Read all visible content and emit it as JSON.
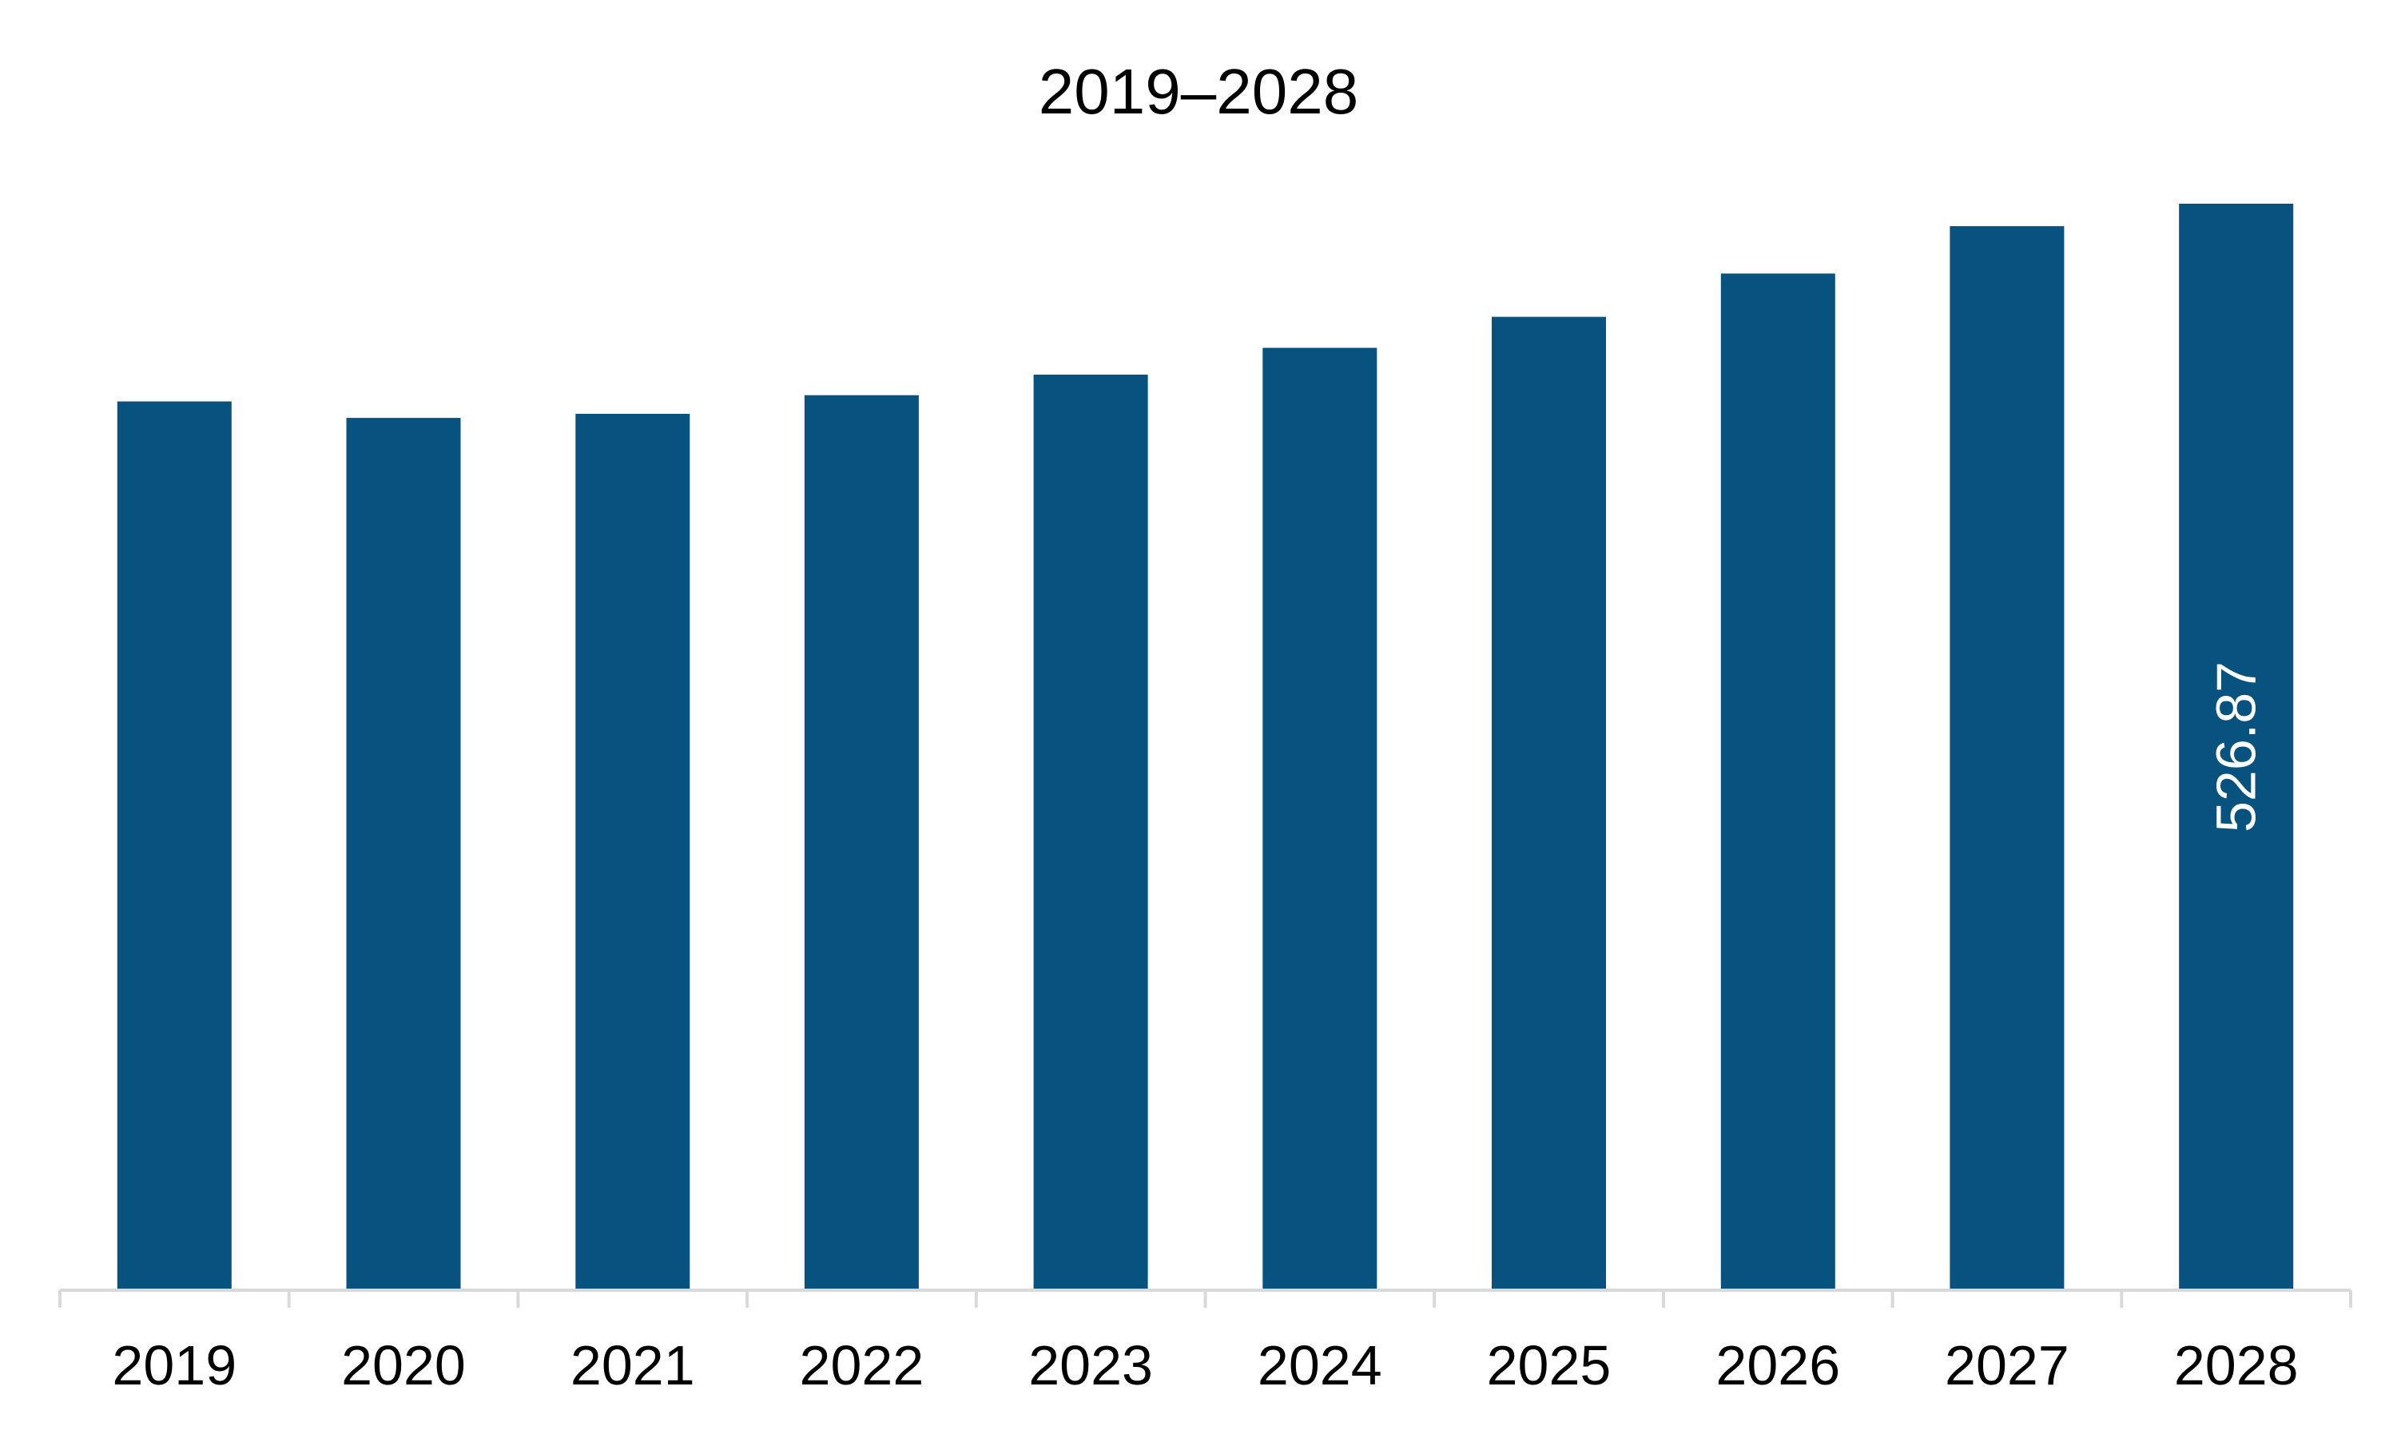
{
  "chart_data": {
    "type": "bar",
    "title": "2019–2028",
    "xlabel": "",
    "ylabel": "",
    "categories": [
      "2019",
      "2020",
      "2021",
      "2022",
      "2023",
      "2024",
      "2025",
      "2026",
      "2027",
      "2028"
    ],
    "values": [
      431,
      423,
      425,
      434,
      444,
      457,
      472,
      493,
      516,
      526.87
    ],
    "data_labels": [
      "",
      "",
      "",
      "",
      "",
      "",
      "",
      "",
      "",
      "526.87"
    ],
    "ylim": [
      0,
      526.87
    ],
    "grid": false,
    "legend": "none",
    "colors": {
      "bar": "#07527F",
      "axis": "#D9D9D9",
      "text": "#000000",
      "data_label": "#FFFFFF"
    }
  }
}
